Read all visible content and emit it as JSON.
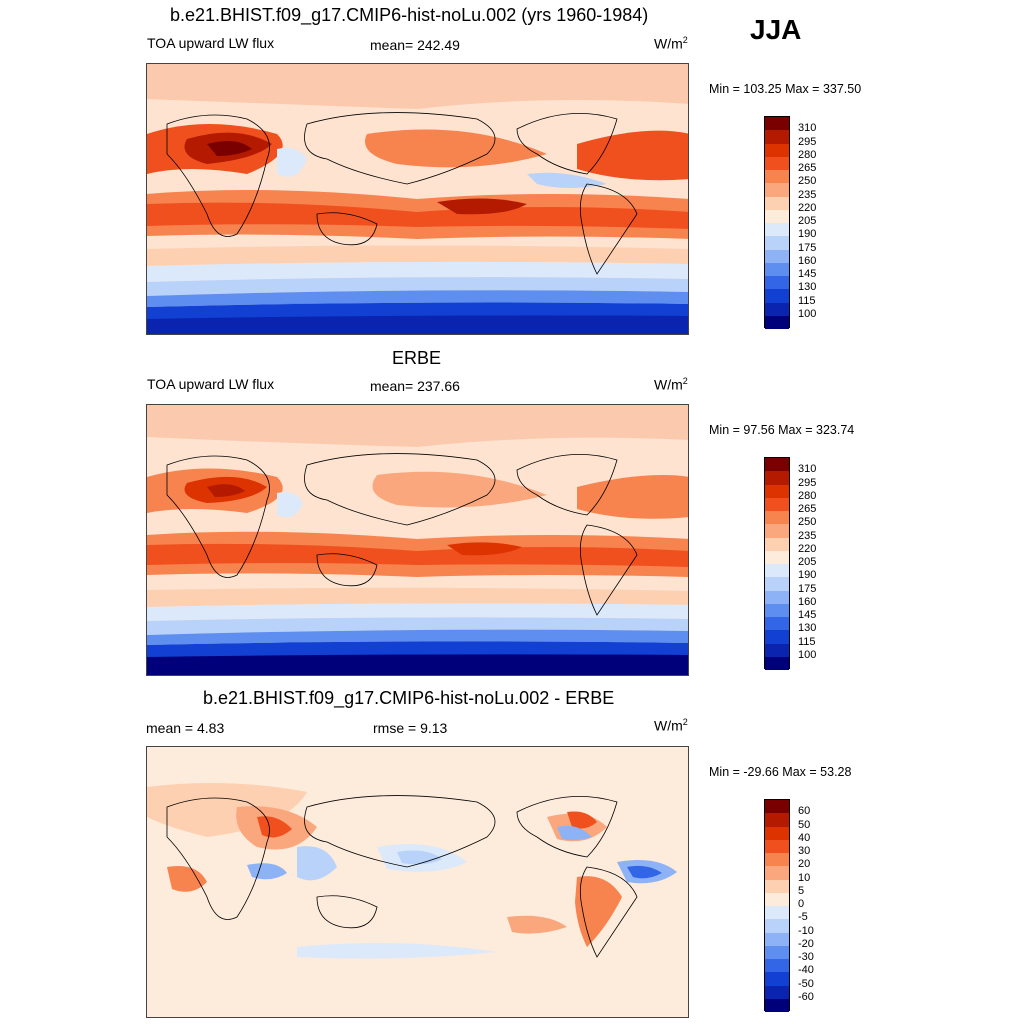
{
  "season": "JJA",
  "panels": [
    {
      "title": "b.e21.BHIST.f09_g17.CMIP6-hist-noLu.002 (yrs 1960-1984)",
      "left_label": "TOA upward LW flux",
      "center_label": "mean= 242.49",
      "units": "W/m",
      "units_sup": "2",
      "minmax": "Min = 103.25 Max = 337.50",
      "map_name": "model-lw-flux-map"
    },
    {
      "title": "ERBE",
      "left_label": "TOA upward LW flux",
      "center_label": "mean= 237.66",
      "units": "W/m",
      "units_sup": "2",
      "minmax": "Min =  97.56 Max = 323.74",
      "map_name": "erbe-lw-flux-map"
    },
    {
      "title": "b.e21.BHIST.f09_g17.CMIP6-hist-noLu.002 - ERBE",
      "left_label": "mean =   4.83",
      "center_label": "rmse =   9.13",
      "units": "W/m",
      "units_sup": "2",
      "minmax": "Min = -29.66 Max =  53.28",
      "map_name": "difference-map"
    }
  ],
  "colorbars": {
    "flux": {
      "labels": [
        "310",
        "295",
        "280",
        "265",
        "250",
        "235",
        "220",
        "205",
        "190",
        "175",
        "160",
        "145",
        "130",
        "115",
        "100"
      ],
      "colors": [
        "#7a0000",
        "#b31a00",
        "#dc3300",
        "#f0501e",
        "#f7834f",
        "#fba77d",
        "#fdd0b2",
        "#fdebdb",
        "#dce9fb",
        "#b9d2f9",
        "#8db2f6",
        "#5e8ff0",
        "#3366e6",
        "#1240d2",
        "#0a24b0",
        "#00007a"
      ]
    },
    "diff": {
      "labels": [
        "60",
        "50",
        "40",
        "30",
        "20",
        "10",
        "5",
        "0",
        "-5",
        "-10",
        "-20",
        "-30",
        "-40",
        "-50",
        "-60"
      ],
      "colors": [
        "#7a0000",
        "#b31a00",
        "#dc3300",
        "#f0501e",
        "#f7834f",
        "#fba77d",
        "#fdd0b2",
        "#fdebdb",
        "#dce9fb",
        "#b9d2f9",
        "#8db2f6",
        "#5e8ff0",
        "#3366e6",
        "#1240d2",
        "#0a24b0",
        "#00007a"
      ]
    }
  }
}
